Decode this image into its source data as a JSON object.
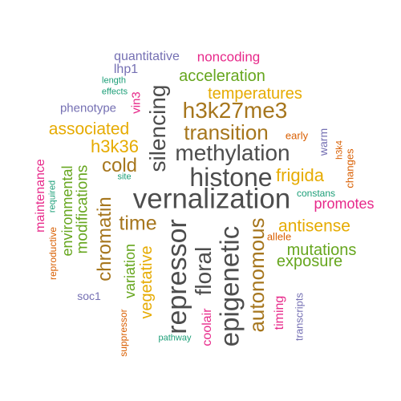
{
  "palette": {
    "dark": "#4d4d4d",
    "brown": "#a6761d",
    "gold": "#e6ab02",
    "green": "#66a61e",
    "magenta": "#e7298a",
    "orange": "#d95f02",
    "purple": "#7570b3",
    "teal": "#1b9e77"
  },
  "words": [
    {
      "text": "vernalization",
      "color": "dark"
    },
    {
      "text": "histone",
      "color": "dark"
    },
    {
      "text": "methylation",
      "color": "dark"
    },
    {
      "text": "repressor",
      "color": "dark"
    },
    {
      "text": "epigenetic",
      "color": "dark"
    },
    {
      "text": "floral",
      "color": "dark"
    },
    {
      "text": "silencing",
      "color": "dark"
    },
    {
      "text": "h3k27me3",
      "color": "brown"
    },
    {
      "text": "transition",
      "color": "brown"
    },
    {
      "text": "autonomous",
      "color": "brown"
    },
    {
      "text": "chromatin",
      "color": "brown"
    },
    {
      "text": "cold",
      "color": "brown"
    },
    {
      "text": "time",
      "color": "brown"
    },
    {
      "text": "h3k36",
      "color": "gold"
    },
    {
      "text": "associated",
      "color": "gold"
    },
    {
      "text": "temperatures",
      "color": "gold"
    },
    {
      "text": "frigida",
      "color": "gold"
    },
    {
      "text": "antisense",
      "color": "gold"
    },
    {
      "text": "vegetative",
      "color": "gold"
    },
    {
      "text": "acceleration",
      "color": "green"
    },
    {
      "text": "mutations",
      "color": "green"
    },
    {
      "text": "exposure",
      "color": "green"
    },
    {
      "text": "modifications",
      "color": "green"
    },
    {
      "text": "environmental",
      "color": "green"
    },
    {
      "text": "variation",
      "color": "green"
    },
    {
      "text": "noncoding",
      "color": "magenta"
    },
    {
      "text": "promotes",
      "color": "magenta"
    },
    {
      "text": "maintenance",
      "color": "magenta"
    },
    {
      "text": "vin3",
      "color": "magenta"
    },
    {
      "text": "coolair",
      "color": "magenta"
    },
    {
      "text": "timing",
      "color": "magenta"
    },
    {
      "text": "early",
      "color": "orange"
    },
    {
      "text": "changes",
      "color": "orange"
    },
    {
      "text": "h3k4",
      "color": "orange"
    },
    {
      "text": "allele",
      "color": "orange"
    },
    {
      "text": "reproductive",
      "color": "orange"
    },
    {
      "text": "suppressor",
      "color": "orange"
    },
    {
      "text": "quantitative",
      "color": "purple"
    },
    {
      "text": "lhp1",
      "color": "purple"
    },
    {
      "text": "phenotype",
      "color": "purple"
    },
    {
      "text": "warm",
      "color": "purple"
    },
    {
      "text": "soc1",
      "color": "purple"
    },
    {
      "text": "transcripts",
      "color": "purple"
    },
    {
      "text": "length",
      "color": "teal"
    },
    {
      "text": "effects",
      "color": "teal"
    },
    {
      "text": "site",
      "color": "teal"
    },
    {
      "text": "required",
      "color": "teal"
    },
    {
      "text": "constans",
      "color": "teal"
    },
    {
      "text": "pathway",
      "color": "teal"
    }
  ]
}
